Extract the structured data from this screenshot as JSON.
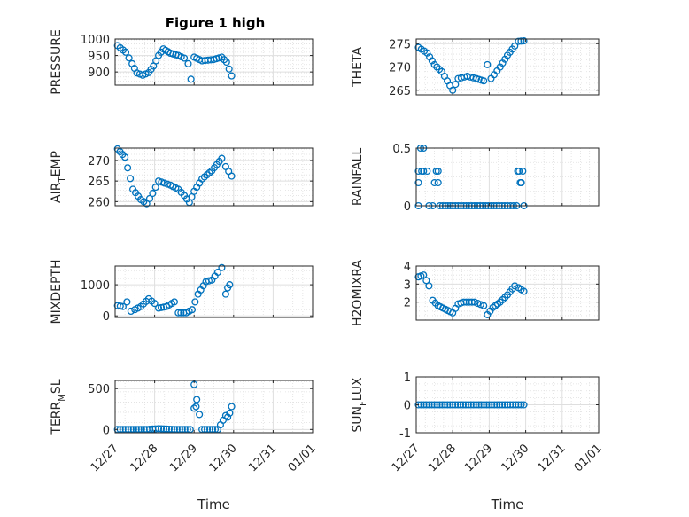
{
  "figure": {
    "title": "Figure 1 high",
    "x_label": "Time"
  },
  "style": {
    "marker_color": "#0072BD",
    "axis_color": "#262626",
    "grid_color": "#dfdfdf"
  },
  "chart_data": [
    {
      "type": "scatter",
      "title": "Figure 1 high",
      "ylabel": "PRESSURE",
      "ylim": [
        860,
        1000
      ],
      "yticks": [
        900,
        950,
        1000
      ],
      "xlim": [
        0,
        5
      ],
      "grid": true,
      "minor_grid": true,
      "xticks": [
        "12/27",
        "12/28",
        "12/29",
        "12/30",
        "12/31",
        "01/01"
      ],
      "x_axis": "days since 12/27",
      "points": [
        [
          0.06,
          980
        ],
        [
          0.27,
          960
        ],
        [
          0.43,
          925
        ],
        [
          0.55,
          897
        ],
        [
          0.7,
          890
        ],
        [
          0.85,
          898
        ],
        [
          0.97,
          918
        ],
        [
          1.1,
          950
        ],
        [
          1.22,
          970
        ],
        [
          1.4,
          957
        ],
        [
          1.6,
          950
        ],
        [
          1.75,
          942
        ],
        [
          1.85,
          925
        ],
        [
          1.92,
          878
        ],
        [
          2.0,
          945
        ],
        [
          2.2,
          934
        ],
        [
          2.5,
          938
        ],
        [
          2.7,
          945
        ],
        [
          2.82,
          930
        ],
        [
          2.95,
          888
        ]
      ]
    },
    {
      "type": "scatter",
      "title": "",
      "ylabel": "THETA",
      "ylim": [
        264,
        276
      ],
      "yticks": [
        265,
        270,
        275
      ],
      "xlim": [
        0,
        5
      ],
      "grid": true,
      "minor_grid": true,
      "xticks": [
        "12/27",
        "12/28",
        "12/29",
        "12/30",
        "12/31",
        "01/01"
      ],
      "x_axis": "days since 12/27",
      "points": [
        [
          0.06,
          274.2
        ],
        [
          0.3,
          273.0
        ],
        [
          0.5,
          270.5
        ],
        [
          0.7,
          269.0
        ],
        [
          0.85,
          267.0
        ],
        [
          1.0,
          265.0
        ],
        [
          1.15,
          267.5
        ],
        [
          1.4,
          268.0
        ],
        [
          1.65,
          267.5
        ],
        [
          1.85,
          267.0
        ],
        [
          1.95,
          270.5
        ],
        [
          2.05,
          267.5
        ],
        [
          2.3,
          270.0
        ],
        [
          2.5,
          272.5
        ],
        [
          2.7,
          274.5
        ],
        [
          2.8,
          275.5
        ],
        [
          2.95,
          275.6
        ]
      ]
    },
    {
      "type": "scatter",
      "title": "",
      "ylabel": "AIR_TEMP",
      "ylabel_display": [
        "AIR",
        "T",
        "EMP"
      ],
      "ylim": [
        259,
        273
      ],
      "yticks": [
        260,
        265,
        270
      ],
      "xlim": [
        0,
        5
      ],
      "grid": true,
      "minor_grid": true,
      "xticks": [
        "12/27",
        "12/28",
        "12/29",
        "12/30",
        "12/31",
        "01/01"
      ],
      "x_axis": "days since 12/27",
      "points": [
        [
          0.06,
          272.8
        ],
        [
          0.25,
          270.8
        ],
        [
          0.45,
          263.0
        ],
        [
          0.65,
          260.5
        ],
        [
          0.8,
          259.5
        ],
        [
          0.95,
          262.0
        ],
        [
          1.1,
          265.0
        ],
        [
          1.4,
          264.0
        ],
        [
          1.6,
          263.0
        ],
        [
          1.75,
          261.5
        ],
        [
          1.88,
          259.8
        ],
        [
          2.0,
          262.5
        ],
        [
          2.2,
          265.5
        ],
        [
          2.45,
          267.5
        ],
        [
          2.7,
          270.5
        ],
        [
          2.8,
          268.5
        ],
        [
          2.95,
          266.2
        ]
      ]
    },
    {
      "type": "scatter",
      "title": "",
      "ylabel": "RAINFALL",
      "ylim": [
        0,
        0.5
      ],
      "yticks": [
        0,
        0.5
      ],
      "xlim": [
        0,
        5
      ],
      "grid": true,
      "minor_grid": true,
      "xticks": [
        "12/27",
        "12/28",
        "12/29",
        "12/30",
        "12/31",
        "01/01"
      ],
      "x_axis": "days since 12/27",
      "points": [
        [
          0.06,
          0.0
        ],
        [
          0.06,
          0.2
        ],
        [
          0.06,
          0.3
        ],
        [
          0.12,
          0.5
        ],
        [
          0.2,
          0.5
        ],
        [
          0.15,
          0.3
        ],
        [
          0.2,
          0.3
        ],
        [
          0.3,
          0.3
        ],
        [
          0.35,
          0.0
        ],
        [
          0.45,
          0.0
        ],
        [
          0.5,
          0.2
        ],
        [
          0.55,
          0.3
        ],
        [
          0.6,
          0.3
        ],
        [
          0.6,
          0.2
        ],
        [
          0.65,
          0.0
        ],
        [
          0.8,
          0.0
        ],
        [
          1.0,
          0.0
        ],
        [
          1.3,
          0.0
        ],
        [
          1.6,
          0.0
        ],
        [
          1.9,
          0.0
        ],
        [
          2.2,
          0.0
        ],
        [
          2.5,
          0.0
        ],
        [
          2.75,
          0.0
        ],
        [
          2.78,
          0.3
        ],
        [
          2.82,
          0.3
        ],
        [
          2.85,
          0.2
        ],
        [
          2.88,
          0.2
        ],
        [
          2.92,
          0.3
        ],
        [
          2.95,
          0.0
        ]
      ]
    },
    {
      "type": "scatter",
      "title": "",
      "ylabel": "MIXDEPTH",
      "ylim": [
        -50,
        1600
      ],
      "yticks": [
        0,
        1000
      ],
      "xlim": [
        0,
        5
      ],
      "grid": true,
      "minor_grid": true,
      "xticks": [
        "12/27",
        "12/28",
        "12/29",
        "12/30",
        "12/31",
        "01/01"
      ],
      "x_axis": "days since 12/27",
      "points": [
        [
          0.06,
          330
        ],
        [
          0.2,
          300
        ],
        [
          0.3,
          450
        ],
        [
          0.4,
          150
        ],
        [
          0.5,
          200
        ],
        [
          0.65,
          300
        ],
        [
          0.85,
          550
        ],
        [
          1.0,
          400
        ],
        [
          1.1,
          250
        ],
        [
          1.3,
          300
        ],
        [
          1.5,
          450
        ],
        [
          1.6,
          100
        ],
        [
          1.8,
          100
        ],
        [
          1.95,
          200
        ],
        [
          2.1,
          700
        ],
        [
          2.3,
          1100
        ],
        [
          2.45,
          1150
        ],
        [
          2.6,
          1400
        ],
        [
          2.7,
          1550
        ],
        [
          2.8,
          700
        ],
        [
          2.85,
          900
        ],
        [
          2.9,
          1000
        ]
      ]
    },
    {
      "type": "scatter",
      "title": "",
      "ylabel": "H2OMIXRA",
      "ylim": [
        1,
        4
      ],
      "yticks": [
        2,
        3,
        4
      ],
      "xlim": [
        0,
        5
      ],
      "grid": true,
      "minor_grid": true,
      "xticks": [
        "12/27",
        "12/28",
        "12/29",
        "12/30",
        "12/31",
        "01/01"
      ],
      "x_axis": "days since 12/27",
      "points": [
        [
          0.06,
          3.4
        ],
        [
          0.2,
          3.5
        ],
        [
          0.35,
          2.9
        ],
        [
          0.45,
          2.1
        ],
        [
          0.6,
          1.8
        ],
        [
          0.8,
          1.6
        ],
        [
          1.0,
          1.4
        ],
        [
          1.15,
          1.9
        ],
        [
          1.3,
          2.0
        ],
        [
          1.6,
          2.0
        ],
        [
          1.85,
          1.8
        ],
        [
          1.95,
          1.3
        ],
        [
          2.1,
          1.7
        ],
        [
          2.3,
          2.0
        ],
        [
          2.5,
          2.4
        ],
        [
          2.7,
          2.9
        ],
        [
          2.8,
          2.8
        ],
        [
          2.95,
          2.6
        ]
      ]
    },
    {
      "type": "scatter",
      "title": "",
      "ylabel": "TERR_MSL",
      "ylabel_display": [
        "TERR",
        "M",
        "SL"
      ],
      "ylim": [
        -40,
        600
      ],
      "yticks": [
        0,
        500
      ],
      "xlim": [
        0,
        5
      ],
      "grid": true,
      "minor_grid": true,
      "xticks": [
        "12/27",
        "12/28",
        "12/29",
        "12/30",
        "12/31",
        "01/01"
      ],
      "x_axis": "days since 12/27",
      "points": [
        [
          0.06,
          0
        ],
        [
          0.4,
          0
        ],
        [
          0.8,
          0
        ],
        [
          1.1,
          10
        ],
        [
          1.5,
          0
        ],
        [
          1.9,
          0
        ],
        [
          2.0,
          260
        ],
        [
          2.05,
          280
        ],
        [
          2.0,
          550
        ],
        [
          2.2,
          0
        ],
        [
          2.6,
          0
        ],
        [
          2.8,
          170
        ],
        [
          2.85,
          150
        ],
        [
          2.9,
          200
        ],
        [
          2.95,
          280
        ]
      ]
    },
    {
      "type": "scatter",
      "title": "",
      "ylabel": "SUN_FLUX",
      "ylabel_display": [
        "SUN",
        "F",
        "LUX"
      ],
      "ylim": [
        -1,
        1
      ],
      "yticks": [
        -1,
        0,
        1
      ],
      "xlim": [
        0,
        5
      ],
      "grid": true,
      "minor_grid": true,
      "xticks": [
        "12/27",
        "12/28",
        "12/29",
        "12/30",
        "12/31",
        "01/01"
      ],
      "x_axis": "days since 12/27",
      "points": [
        [
          0.06,
          0
        ],
        [
          0.5,
          0
        ],
        [
          1.0,
          0
        ],
        [
          1.5,
          0
        ],
        [
          2.0,
          0
        ],
        [
          2.5,
          0
        ],
        [
          2.95,
          0
        ]
      ]
    }
  ]
}
